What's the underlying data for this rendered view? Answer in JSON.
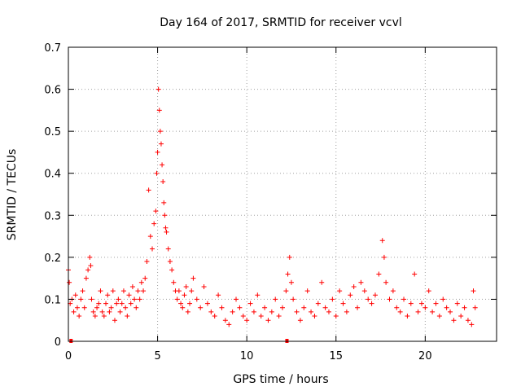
{
  "chart_data": {
    "type": "scatter",
    "title": "Day 164 of 2017, SRMTID for receiver vcvl",
    "xlabel": "GPS time / hours",
    "ylabel": "SRMTID / TECUs",
    "xlim": [
      0,
      24
    ],
    "ylim": [
      0,
      0.7
    ],
    "xticks": [
      0,
      5,
      10,
      15,
      20
    ],
    "xtick_labels": [
      "0",
      "5",
      "10",
      "15",
      "20"
    ],
    "yticks": [
      0,
      0.1,
      0.2,
      0.3,
      0.4,
      0.5,
      0.6,
      0.7
    ],
    "ytick_labels": [
      "0",
      "0.1",
      "0.2",
      "0.3",
      "0.4",
      "0.5",
      "0.6",
      "0.7"
    ],
    "grid": true,
    "marker": "+",
    "color": "#ff0000",
    "series": [
      {
        "name": "SRMTID",
        "x": [
          0.0,
          0.05,
          0.1,
          0.2,
          0.3,
          0.4,
          0.5,
          0.6,
          0.7,
          0.8,
          0.9,
          1.0,
          1.1,
          1.2,
          1.25,
          1.3,
          1.4,
          1.5,
          1.6,
          1.7,
          1.8,
          1.9,
          2.0,
          2.1,
          2.2,
          2.3,
          2.4,
          2.5,
          2.6,
          2.7,
          2.8,
          2.9,
          3.0,
          3.1,
          3.2,
          3.3,
          3.4,
          3.5,
          3.6,
          3.7,
          3.8,
          3.9,
          4.0,
          4.1,
          4.2,
          4.3,
          4.4,
          4.5,
          4.6,
          4.7,
          4.8,
          4.9,
          4.95,
          5.0,
          5.05,
          5.1,
          5.15,
          5.2,
          5.25,
          5.3,
          5.35,
          5.4,
          5.45,
          5.5,
          5.6,
          5.7,
          5.8,
          5.9,
          6.0,
          6.1,
          6.2,
          6.3,
          6.4,
          6.5,
          6.6,
          6.7,
          6.8,
          6.9,
          7.0,
          7.2,
          7.4,
          7.6,
          7.8,
          8.0,
          8.2,
          8.4,
          8.6,
          8.8,
          9.0,
          9.2,
          9.4,
          9.6,
          9.8,
          10.0,
          10.2,
          10.4,
          10.6,
          10.8,
          11.0,
          11.2,
          11.4,
          11.6,
          11.8,
          12.0,
          12.2,
          12.3,
          12.4,
          12.5,
          12.6,
          12.8,
          13.0,
          13.2,
          13.4,
          13.6,
          13.8,
          14.0,
          14.2,
          14.4,
          14.6,
          14.8,
          15.0,
          15.2,
          15.4,
          15.6,
          15.8,
          16.0,
          16.2,
          16.4,
          16.6,
          16.8,
          17.0,
          17.2,
          17.4,
          17.6,
          17.7,
          17.8,
          18.0,
          18.2,
          18.4,
          18.6,
          18.8,
          19.0,
          19.2,
          19.4,
          19.6,
          19.8,
          20.0,
          20.2,
          20.4,
          20.6,
          20.8,
          21.0,
          21.2,
          21.4,
          21.6,
          21.8,
          22.0,
          22.2,
          22.4,
          22.6,
          22.7,
          22.8
        ],
        "y": [
          0.17,
          0.14,
          0.09,
          0.1,
          0.07,
          0.11,
          0.08,
          0.06,
          0.1,
          0.12,
          0.08,
          0.15,
          0.17,
          0.2,
          0.18,
          0.1,
          0.07,
          0.06,
          0.08,
          0.09,
          0.12,
          0.07,
          0.06,
          0.09,
          0.11,
          0.07,
          0.08,
          0.12,
          0.05,
          0.09,
          0.1,
          0.07,
          0.09,
          0.12,
          0.08,
          0.06,
          0.11,
          0.09,
          0.13,
          0.1,
          0.08,
          0.12,
          0.1,
          0.14,
          0.12,
          0.15,
          0.19,
          0.36,
          0.25,
          0.22,
          0.28,
          0.31,
          0.4,
          0.45,
          0.6,
          0.55,
          0.5,
          0.47,
          0.42,
          0.38,
          0.33,
          0.3,
          0.27,
          0.26,
          0.22,
          0.19,
          0.17,
          0.14,
          0.12,
          0.1,
          0.12,
          0.09,
          0.08,
          0.11,
          0.13,
          0.07,
          0.09,
          0.12,
          0.15,
          0.1,
          0.08,
          0.13,
          0.09,
          0.07,
          0.06,
          0.11,
          0.08,
          0.05,
          0.04,
          0.07,
          0.1,
          0.08,
          0.06,
          0.05,
          0.09,
          0.07,
          0.11,
          0.06,
          0.08,
          0.05,
          0.07,
          0.1,
          0.06,
          0.08,
          0.12,
          0.16,
          0.2,
          0.14,
          0.1,
          0.07,
          0.05,
          0.08,
          0.12,
          0.07,
          0.06,
          0.09,
          0.14,
          0.08,
          0.07,
          0.1,
          0.06,
          0.12,
          0.09,
          0.07,
          0.11,
          0.13,
          0.08,
          0.14,
          0.12,
          0.1,
          0.09,
          0.11,
          0.16,
          0.24,
          0.2,
          0.14,
          0.1,
          0.12,
          0.08,
          0.07,
          0.1,
          0.06,
          0.09,
          0.16,
          0.07,
          0.09,
          0.08,
          0.12,
          0.07,
          0.09,
          0.06,
          0.1,
          0.08,
          0.07,
          0.05,
          0.09,
          0.06,
          0.08,
          0.05,
          0.04,
          0.12,
          0.08
        ],
        "near_zero_x": [
          0.15,
          12.25
        ]
      }
    ]
  }
}
